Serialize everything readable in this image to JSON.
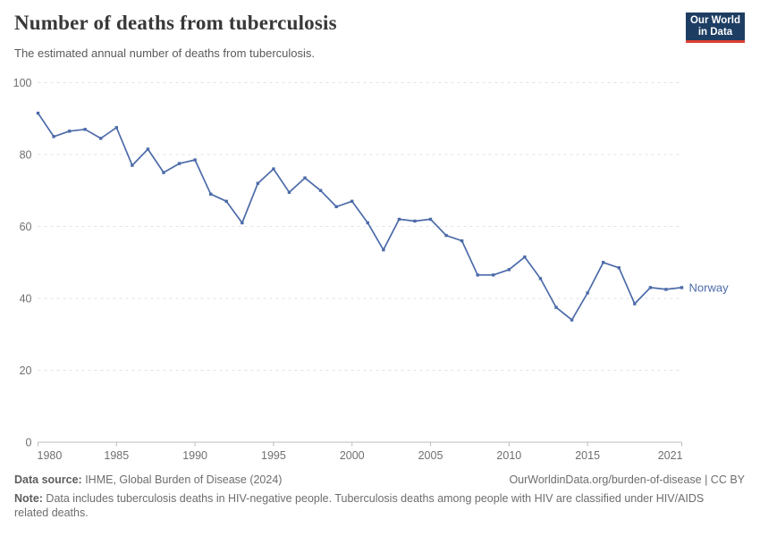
{
  "header": {
    "title": "Number of deaths from tuberculosis",
    "subtitle": "The estimated annual number of deaths from tuberculosis.",
    "logo": {
      "line1": "Our World",
      "line2": "in Data"
    }
  },
  "chart_data": {
    "type": "line",
    "title": "Number of deaths from tuberculosis",
    "x": [
      1980,
      1981,
      1982,
      1983,
      1984,
      1985,
      1986,
      1987,
      1988,
      1989,
      1990,
      1991,
      1992,
      1993,
      1994,
      1995,
      1996,
      1997,
      1998,
      1999,
      2000,
      2001,
      2002,
      2003,
      2004,
      2005,
      2006,
      2007,
      2008,
      2009,
      2010,
      2011,
      2012,
      2013,
      2014,
      2015,
      2016,
      2017,
      2018,
      2019,
      2020,
      2021
    ],
    "series": [
      {
        "name": "Norway",
        "color": "#4c6ba9",
        "values": [
          91.5,
          85,
          86.5,
          87,
          84.5,
          87.5,
          77,
          81.5,
          75,
          77.5,
          78.5,
          69,
          67,
          61,
          72,
          76,
          69.5,
          73.5,
          70,
          65.5,
          67,
          61,
          53.5,
          62,
          61.5,
          62,
          57.5,
          56,
          46.5,
          46.5,
          48,
          51.5,
          45.5,
          37.5,
          34,
          41.5,
          50,
          48.5,
          38.5,
          43,
          42.5,
          43
        ]
      }
    ],
    "xlabel": "",
    "ylabel": "",
    "ylim": [
      0,
      100
    ],
    "yticks": [
      0,
      20,
      40,
      60,
      80,
      100
    ],
    "xticks": [
      1980,
      1985,
      1990,
      1995,
      2000,
      2005,
      2010,
      2015,
      2021
    ],
    "grid": "horizontal-dashed",
    "legend_position": "end-of-line-label",
    "end_label": "Norway",
    "marker": "square"
  },
  "colors": {
    "series": "#4c6ba9",
    "gridline": "#e2e2e2",
    "axis": "#bdbdbd",
    "axis_label": "#6f6f6f",
    "logo_bg": "#1d3d63",
    "logo_bar": "#dc3e32"
  },
  "footer": {
    "source_label": "Data source:",
    "source_value": " IHME, Global Burden of Disease (2024)",
    "link": "OurWorldinData.org/burden-of-disease | CC BY",
    "note_label": "Note:",
    "note_value": " Data includes tuberculosis deaths in HIV-negative people. Tuberculosis deaths among people with HIV are classified under HIV/AIDS related deaths."
  }
}
